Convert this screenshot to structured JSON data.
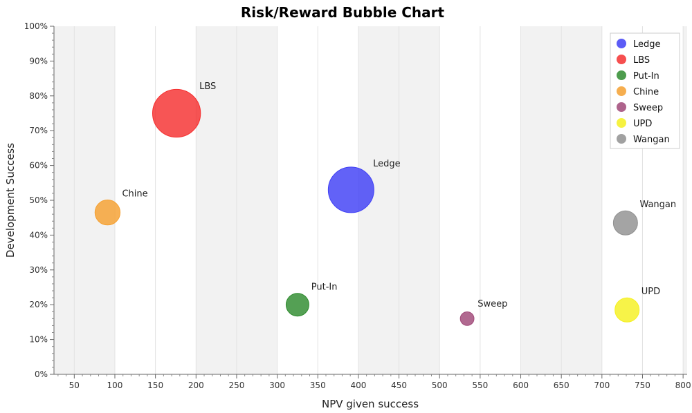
{
  "chart_data": {
    "type": "bubble",
    "title": "Risk/Reward Bubble Chart",
    "xlabel": "NPV given success",
    "ylabel": "Development Success",
    "xlim": [
      25,
      805
    ],
    "ylim": [
      0,
      100
    ],
    "x_ticks": [
      50,
      100,
      150,
      200,
      250,
      300,
      350,
      400,
      450,
      500,
      550,
      600,
      650,
      700,
      750,
      800
    ],
    "y_ticks": [
      0,
      10,
      20,
      30,
      40,
      50,
      60,
      70,
      80,
      90,
      100
    ],
    "y_tick_suffix": "%",
    "grid": "vertical",
    "legend_position": "top-right",
    "series": [
      {
        "name": "Ledge",
        "x": 391,
        "y": 53,
        "size": 1.0,
        "color": "#4040f5"
      },
      {
        "name": "LBS",
        "x": 176,
        "y": 75,
        "size": 1.05,
        "color": "#f53030"
      },
      {
        "name": "Put-In",
        "x": 325,
        "y": 20,
        "size": 0.5,
        "color": "#2e8b2e"
      },
      {
        "name": "Chine",
        "x": 91,
        "y": 46.5,
        "size": 0.55,
        "color": "#f5a030"
      },
      {
        "name": "Sweep",
        "x": 534,
        "y": 16,
        "size": 0.3,
        "color": "#a04878"
      },
      {
        "name": "UPD",
        "x": 731,
        "y": 18.5,
        "size": 0.53,
        "color": "#f5f020"
      },
      {
        "name": "Wangan",
        "x": 729,
        "y": 43.5,
        "size": 0.53,
        "color": "#909090"
      }
    ]
  }
}
